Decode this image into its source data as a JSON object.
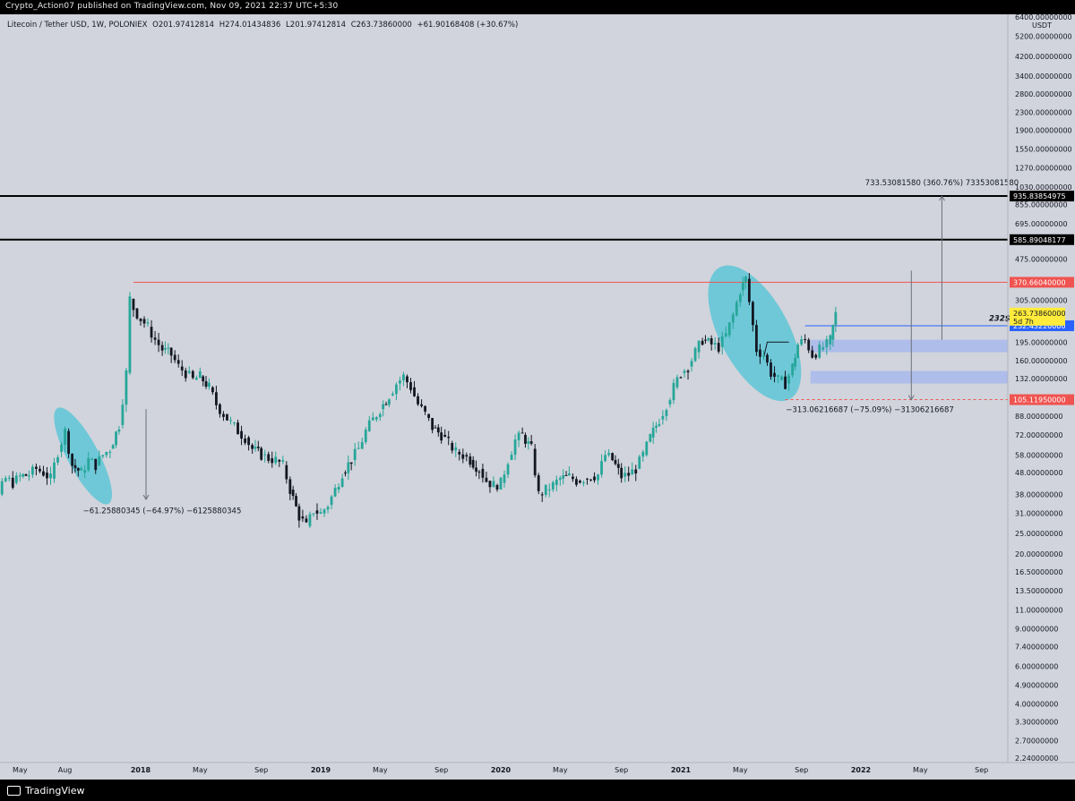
{
  "header": {
    "published": "Crypto_Action07 published on TradingView.com, Nov 09, 2021 22:37 UTC+5:30"
  },
  "legend": {
    "symbol": "Litecoin / Tether USD, 1W, POLONIEX",
    "open": "O201.97412814",
    "high": "H274.01434836",
    "low": "L201.97412814",
    "close": "C263.73860000",
    "change": "+61.90168408 (+30.67%)"
  },
  "footer": {
    "brand": "TradingView"
  },
  "chart_data": {
    "type": "candlestick",
    "symbol": "LTC/USDT",
    "interval": "1W",
    "exchange": "POLONIEX",
    "scale": "log",
    "currency": "USDT",
    "ylim": [
      2.0,
      7000
    ],
    "colors": {
      "up": "#26a69a",
      "down": "#131722",
      "resistance": "#ef5350",
      "support_box": "#a8b8ec"
    },
    "y_ticks": [
      "6400.00000000",
      "5200.00000000",
      "4200.00000000",
      "3400.00000000",
      "2800.00000000",
      "2300.00000000",
      "1900.00000000",
      "1550.00000000",
      "1270.00000000",
      "1030.00000000",
      "855.00000000",
      "695.00000000",
      "475.00000000",
      "305.00000000",
      "195.00000000",
      "160.00000000",
      "132.00000000",
      "88.00000000",
      "72.00000000",
      "58.00000000",
      "48.00000000",
      "38.00000000",
      "31.00000000",
      "25.00000000",
      "20.00000000",
      "16.50000000",
      "13.50000000",
      "11.00000000",
      "9.00000000",
      "7.40000000",
      "6.00000000",
      "4.90000000",
      "4.00000000",
      "3.30000000",
      "2.70000000",
      "2.24000000"
    ],
    "x_ticks": [
      {
        "label": "May",
        "t": 2017.33,
        "year": false
      },
      {
        "label": "Aug",
        "t": 2017.58,
        "year": false
      },
      {
        "label": "2018",
        "t": 2018.0,
        "year": true
      },
      {
        "label": "May",
        "t": 2018.33,
        "year": false
      },
      {
        "label": "Sep",
        "t": 2018.67,
        "year": false
      },
      {
        "label": "2019",
        "t": 2019.0,
        "year": true
      },
      {
        "label": "May",
        "t": 2019.33,
        "year": false
      },
      {
        "label": "Sep",
        "t": 2019.67,
        "year": false
      },
      {
        "label": "2020",
        "t": 2020.0,
        "year": true
      },
      {
        "label": "May",
        "t": 2020.33,
        "year": false
      },
      {
        "label": "Sep",
        "t": 2020.67,
        "year": false
      },
      {
        "label": "2021",
        "t": 2021.0,
        "year": true
      },
      {
        "label": "May",
        "t": 2021.33,
        "year": false
      },
      {
        "label": "Sep",
        "t": 2021.67,
        "year": false
      },
      {
        "label": "2022",
        "t": 2022.0,
        "year": true
      },
      {
        "label": "May",
        "t": 2022.33,
        "year": false
      },
      {
        "label": "Sep",
        "t": 2022.67,
        "year": false
      }
    ],
    "price_series": [
      [
        2017.0,
        9.0
      ],
      [
        2017.04,
        12.0
      ],
      [
        2017.08,
        16.0
      ],
      [
        2017.12,
        25.0
      ],
      [
        2017.17,
        30.0
      ],
      [
        2017.21,
        38.0
      ],
      [
        2017.25,
        45.0
      ],
      [
        2017.29,
        43.0
      ],
      [
        2017.33,
        46.0
      ],
      [
        2017.38,
        47.0
      ],
      [
        2017.42,
        50.0
      ],
      [
        2017.46,
        48.0
      ],
      [
        2017.5,
        45.0
      ],
      [
        2017.54,
        60.0
      ],
      [
        2017.58,
        75.0
      ],
      [
        2017.62,
        52.0
      ],
      [
        2017.67,
        48.0
      ],
      [
        2017.71,
        55.0
      ],
      [
        2017.75,
        52.0
      ],
      [
        2017.79,
        58.0
      ],
      [
        2017.83,
        62.0
      ],
      [
        2017.88,
        80.0
      ],
      [
        2017.92,
        140.0
      ],
      [
        2017.94,
        310.0
      ],
      [
        2017.96,
        280.0
      ],
      [
        2018.0,
        250.0
      ],
      [
        2018.04,
        230.0
      ],
      [
        2018.08,
        200.0
      ],
      [
        2018.12,
        180.0
      ],
      [
        2018.17,
        170.0
      ],
      [
        2018.21,
        150.0
      ],
      [
        2018.25,
        140.0
      ],
      [
        2018.29,
        130.0
      ],
      [
        2018.33,
        135.0
      ],
      [
        2018.38,
        120.0
      ],
      [
        2018.42,
        100.0
      ],
      [
        2018.46,
        90.0
      ],
      [
        2018.5,
        82.0
      ],
      [
        2018.54,
        75.0
      ],
      [
        2018.58,
        70.0
      ],
      [
        2018.62,
        62.0
      ],
      [
        2018.67,
        58.0
      ],
      [
        2018.71,
        56.0
      ],
      [
        2018.75,
        55.0
      ],
      [
        2018.79,
        52.0
      ],
      [
        2018.83,
        40.0
      ],
      [
        2018.88,
        30.0
      ],
      [
        2018.92,
        27.0
      ],
      [
        2018.96,
        32.0
      ],
      [
        2019.0,
        31.0
      ],
      [
        2019.04,
        34.0
      ],
      [
        2019.08,
        40.0
      ],
      [
        2019.12,
        48.0
      ],
      [
        2019.17,
        55.0
      ],
      [
        2019.21,
        62.0
      ],
      [
        2019.25,
        75.0
      ],
      [
        2019.29,
        85.0
      ],
      [
        2019.33,
        95.0
      ],
      [
        2019.38,
        110.0
      ],
      [
        2019.42,
        125.0
      ],
      [
        2019.46,
        135.0
      ],
      [
        2019.5,
        120.0
      ],
      [
        2019.54,
        100.0
      ],
      [
        2019.58,
        90.0
      ],
      [
        2019.62,
        78.0
      ],
      [
        2019.67,
        72.0
      ],
      [
        2019.71,
        66.0
      ],
      [
        2019.75,
        60.0
      ],
      [
        2019.79,
        58.0
      ],
      [
        2019.83,
        55.0
      ],
      [
        2019.88,
        50.0
      ],
      [
        2019.92,
        44.0
      ],
      [
        2019.96,
        42.0
      ],
      [
        2020.0,
        43.0
      ],
      [
        2020.04,
        55.0
      ],
      [
        2020.08,
        68.0
      ],
      [
        2020.12,
        72.0
      ],
      [
        2020.17,
        62.0
      ],
      [
        2020.21,
        38.0
      ],
      [
        2020.25,
        40.0
      ],
      [
        2020.29,
        42.0
      ],
      [
        2020.33,
        45.0
      ],
      [
        2020.38,
        46.0
      ],
      [
        2020.42,
        44.0
      ],
      [
        2020.46,
        45.0
      ],
      [
        2020.5,
        46.0
      ],
      [
        2020.54,
        47.0
      ],
      [
        2020.58,
        58.0
      ],
      [
        2020.62,
        55.0
      ],
      [
        2020.67,
        46.0
      ],
      [
        2020.71,
        47.0
      ],
      [
        2020.75,
        50.0
      ],
      [
        2020.79,
        58.0
      ],
      [
        2020.83,
        70.0
      ],
      [
        2020.88,
        85.0
      ],
      [
        2020.92,
        100.0
      ],
      [
        2020.96,
        120.0
      ],
      [
        2021.0,
        140.0
      ],
      [
        2021.04,
        150.0
      ],
      [
        2021.08,
        175.0
      ],
      [
        2021.12,
        200.0
      ],
      [
        2021.17,
        190.0
      ],
      [
        2021.21,
        185.0
      ],
      [
        2021.25,
        210.0
      ],
      [
        2021.29,
        260.0
      ],
      [
        2021.33,
        340.0
      ],
      [
        2021.36,
        385.0
      ],
      [
        2021.38,
        300.0
      ],
      [
        2021.42,
        180.0
      ],
      [
        2021.46,
        170.0
      ],
      [
        2021.5,
        140.0
      ],
      [
        2021.54,
        130.0
      ],
      [
        2021.58,
        125.0
      ],
      [
        2021.62,
        150.0
      ],
      [
        2021.65,
        190.0
      ],
      [
        2021.69,
        200.0
      ],
      [
        2021.73,
        170.0
      ],
      [
        2021.77,
        180.0
      ],
      [
        2021.81,
        190.0
      ],
      [
        2021.83,
        200.0
      ],
      [
        2021.86,
        263.7
      ]
    ],
    "lines": [
      {
        "label": "935.83854975",
        "price": 935.84,
        "style": "solid",
        "color": "#000000"
      },
      {
        "label": "585.89048177",
        "price": 585.89,
        "style": "solid",
        "color": "#000000"
      },
      {
        "label": "370.66040000",
        "price": 370.66,
        "style": "solid",
        "color": "#ef5350"
      },
      {
        "label": "232.43220000",
        "price": 232.43,
        "style": "solid",
        "color": "#2962ff"
      },
      {
        "label": "105.11950000",
        "price": 105.12,
        "style": "dashed",
        "color": "#ef5350"
      }
    ],
    "current_price": {
      "label": "263.73860000",
      "sub": "5d 7h",
      "price": 263.74,
      "color": "#ffeb3b"
    },
    "price_note": "232$",
    "measurements": [
      {
        "text": "733.53081580 (360.76%) 73353081580",
        "kind": "up"
      },
      {
        "text": "−313.06216687 (−75.09%) −31306216687",
        "kind": "down"
      },
      {
        "text": "−61.25880345 (−64.97%) −6125880345",
        "kind": "down"
      }
    ],
    "zones": [
      {
        "from": 175,
        "to": 200
      },
      {
        "from": 125,
        "to": 143
      }
    ],
    "highlight_ellipses": 2
  }
}
